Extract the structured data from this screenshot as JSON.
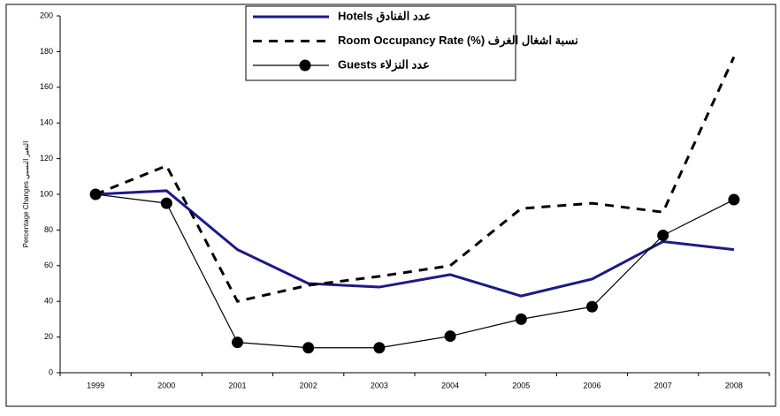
{
  "chart_data": {
    "type": "line",
    "y_label": "Percentage Changes التغير النسبي",
    "categories": [
      "1999",
      "2000",
      "2001",
      "2002",
      "2003",
      "2004",
      "2005",
      "2006",
      "2007",
      "2008"
    ],
    "series": [
      {
        "name": "Hotels عدد الفنادق",
        "color": "#1c1a86",
        "style": "solid",
        "values": [
          100,
          102,
          69,
          50,
          48,
          55,
          43,
          52.5,
          73.5,
          69
        ]
      },
      {
        "name": "Room Occupancy Rate (%) نسبة اشغال الغرف",
        "color": "#000000",
        "style": "dashed",
        "values": [
          100,
          116,
          40,
          49,
          54,
          60,
          92,
          95,
          90,
          177
        ]
      },
      {
        "name": "Guests عدد النزلاء",
        "color": "#000000",
        "style": "markers",
        "values": [
          100,
          95,
          17,
          14,
          14,
          20.5,
          30,
          37,
          77,
          97
        ]
      }
    ],
    "ylim": [
      0,
      200
    ],
    "yticks": [
      0,
      20,
      40,
      60,
      80,
      100,
      120,
      140,
      160,
      180,
      200
    ],
    "grid": false,
    "legend": "top"
  }
}
